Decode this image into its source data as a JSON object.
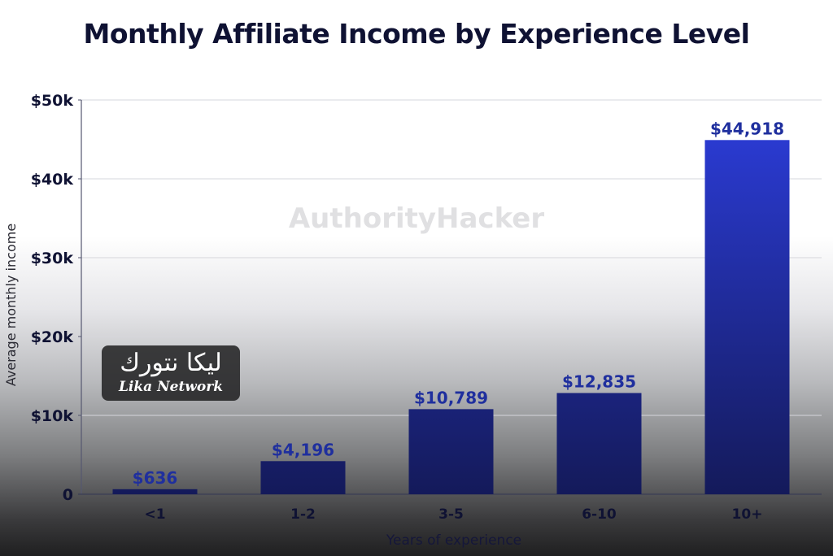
{
  "chart_data": {
    "type": "bar",
    "title": "Monthly Affiliate Income by Experience Level",
    "xlabel": "Years of experience",
    "ylabel": "Average monthly income",
    "categories": [
      "<1",
      "1-2",
      "3-5",
      "6-10",
      "10+"
    ],
    "values": [
      636,
      4196,
      10789,
      12835,
      44918
    ],
    "data_labels": [
      "$636",
      "$4,196",
      "$10,789",
      "$12,835",
      "$44,918"
    ],
    "ylim": [
      0,
      50000
    ],
    "yticks": [
      0,
      10000,
      20000,
      30000,
      40000,
      50000
    ],
    "ytick_labels": [
      "0",
      "$10k",
      "$20k",
      "$30k",
      "$40k",
      "$50k"
    ],
    "grid": true,
    "legend": "none",
    "colors": {
      "bar_top": "#2a3ad0",
      "bar_bottom": "#141a5a",
      "label": "#1f2f9e",
      "text": "#0f1233"
    }
  },
  "watermark": "AuthorityHacker",
  "logo": {
    "arabic": "ليكا نتورك",
    "english": "Lika Network"
  }
}
